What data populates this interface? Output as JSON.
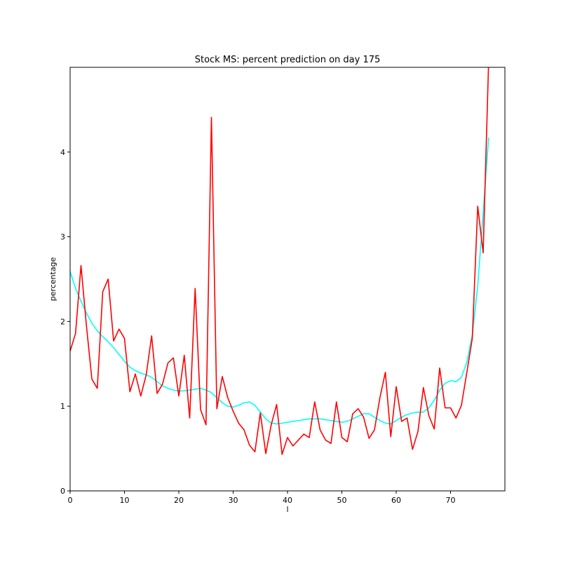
{
  "chart_data": {
    "type": "line",
    "title": "Stock MS: percent prediction on day 175",
    "xlabel": "l",
    "ylabel": "percentage",
    "xlim": [
      0,
      80
    ],
    "ylim": [
      0,
      5
    ],
    "xticks": [
      0,
      10,
      20,
      30,
      40,
      50,
      60,
      70
    ],
    "yticks": [
      0,
      1,
      2,
      3,
      4
    ],
    "grid": false,
    "legend": "none",
    "series": [
      {
        "color": "#ff0000",
        "x": [
          0,
          1,
          2,
          3,
          4,
          5,
          6,
          7,
          8,
          9,
          10,
          11,
          12,
          13,
          14,
          15,
          16,
          17,
          18,
          19,
          20,
          21,
          22,
          23,
          24,
          25,
          26,
          27,
          28,
          29,
          30,
          31,
          32,
          33,
          34,
          35,
          36,
          37,
          38,
          39,
          40,
          41,
          42,
          43,
          44,
          45,
          46,
          47,
          48,
          49,
          50,
          51,
          52,
          53,
          54,
          55,
          56,
          57,
          58,
          59,
          60,
          61,
          62,
          63,
          64,
          65,
          66,
          67,
          68,
          69,
          70,
          71,
          72,
          73,
          74,
          75,
          76,
          77
        ],
        "y": [
          1.65,
          1.86,
          2.66,
          1.95,
          1.32,
          1.21,
          2.35,
          2.5,
          1.77,
          1.91,
          1.8,
          1.17,
          1.38,
          1.12,
          1.37,
          1.83,
          1.15,
          1.26,
          1.51,
          1.57,
          1.12,
          1.6,
          0.86,
          2.39,
          0.96,
          0.78,
          4.41,
          0.97,
          1.35,
          1.1,
          0.94,
          0.8,
          0.72,
          0.54,
          0.46,
          0.92,
          0.44,
          0.78,
          1.02,
          0.43,
          0.63,
          0.53,
          0.6,
          0.67,
          0.63,
          1.05,
          0.72,
          0.6,
          0.56,
          1.05,
          0.63,
          0.58,
          0.91,
          0.97,
          0.87,
          0.62,
          0.72,
          1.1,
          1.4,
          0.64,
          1.23,
          0.82,
          0.86,
          0.49,
          0.7,
          1.22,
          0.89,
          0.73,
          1.45,
          0.98,
          0.98,
          0.86,
          1.01,
          1.4,
          1.8,
          3.36,
          2.81,
          5.05
        ]
      },
      {
        "color": "#00ffff",
        "x": [
          0,
          1,
          2,
          3,
          4,
          5,
          6,
          7,
          8,
          9,
          10,
          11,
          12,
          13,
          14,
          15,
          16,
          17,
          18,
          19,
          20,
          21,
          22,
          23,
          24,
          25,
          26,
          27,
          28,
          29,
          30,
          31,
          32,
          33,
          34,
          35,
          36,
          37,
          38,
          39,
          40,
          41,
          42,
          43,
          44,
          45,
          46,
          47,
          48,
          49,
          50,
          51,
          52,
          53,
          54,
          55,
          56,
          57,
          58,
          59,
          60,
          61,
          62,
          63,
          64,
          65,
          66,
          67,
          68,
          69,
          70,
          71,
          72,
          73,
          74,
          75,
          76,
          77
        ],
        "y": [
          2.59,
          2.39,
          2.24,
          2.1,
          1.98,
          1.89,
          1.82,
          1.76,
          1.69,
          1.61,
          1.53,
          1.46,
          1.42,
          1.39,
          1.37,
          1.34,
          1.29,
          1.24,
          1.21,
          1.19,
          1.18,
          1.18,
          1.19,
          1.2,
          1.21,
          1.19,
          1.16,
          1.1,
          1.04,
          1.0,
          0.99,
          1.01,
          1.04,
          1.05,
          1.01,
          0.93,
          0.85,
          0.8,
          0.79,
          0.8,
          0.81,
          0.82,
          0.83,
          0.84,
          0.85,
          0.85,
          0.85,
          0.84,
          0.83,
          0.82,
          0.81,
          0.82,
          0.85,
          0.88,
          0.91,
          0.91,
          0.87,
          0.83,
          0.8,
          0.79,
          0.83,
          0.87,
          0.9,
          0.92,
          0.93,
          0.93,
          0.98,
          1.07,
          1.19,
          1.27,
          1.3,
          1.29,
          1.34,
          1.52,
          1.84,
          2.42,
          3.28,
          4.17
        ]
      }
    ]
  }
}
